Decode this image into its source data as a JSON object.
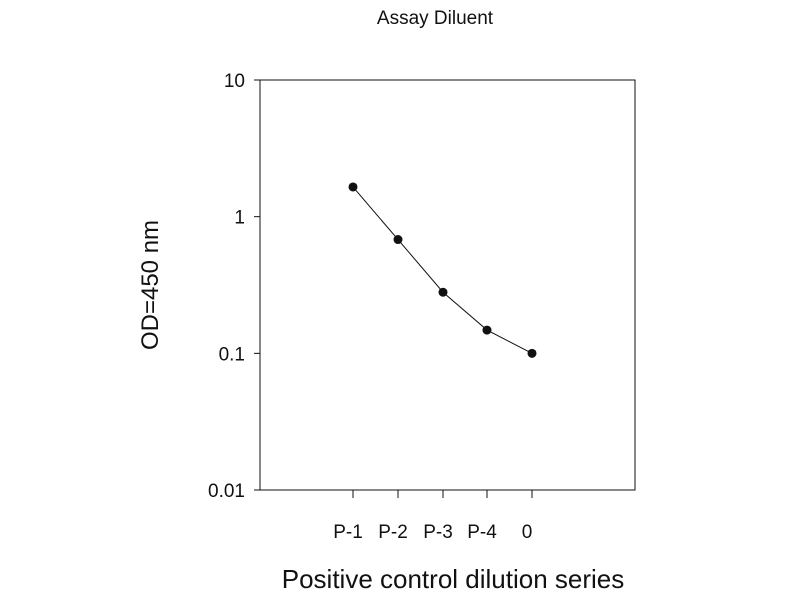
{
  "chart_data": {
    "type": "line",
    "title": "Assay Diluent",
    "xlabel": "Positive control dilution series",
    "ylabel": "OD=450 nm",
    "categories": [
      "P-1",
      "P-2",
      "P-3",
      "P-4",
      "0"
    ],
    "series": [
      {
        "values": [
          1.65,
          0.68,
          0.28,
          0.148,
          0.1
        ]
      }
    ],
    "y_scale": "log",
    "ylim": [
      0.01,
      10
    ],
    "y_ticks": [
      "10",
      "1",
      "0.1",
      "0.01"
    ],
    "grid": false,
    "legend": "none"
  }
}
